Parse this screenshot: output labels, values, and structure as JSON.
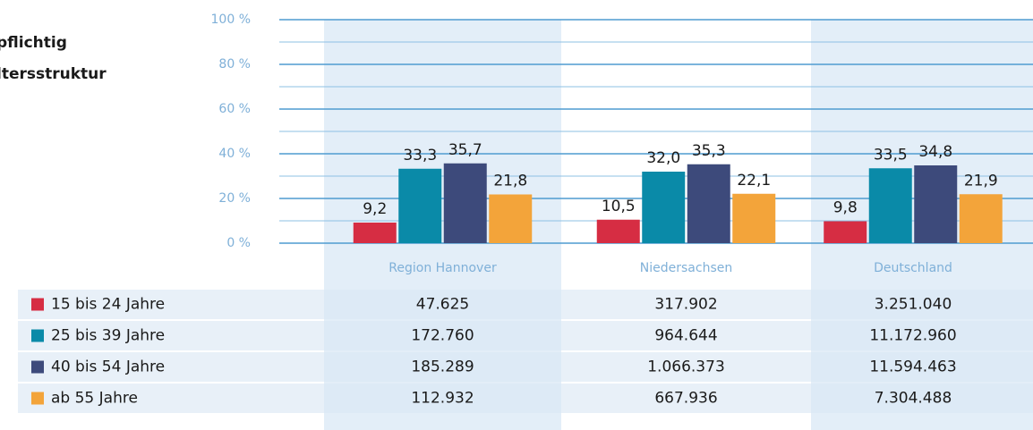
{
  "chart_data": {
    "type": "bar",
    "title": [
      "pflichtig",
      "ltersstruktur"
    ],
    "categories": [
      "Region Hannover",
      "Niedersachsen",
      "Deutschland"
    ],
    "series": [
      {
        "name": "15 bis 24 Jahre",
        "color": "#d62d43",
        "values": [
          9.2,
          10.5,
          9.8
        ],
        "value_labels": [
          "9,2",
          "10,5",
          "9,8"
        ]
      },
      {
        "name": "25 bis 39 Jahre",
        "color": "#0a8aa8",
        "values": [
          33.3,
          32.0,
          33.5
        ],
        "value_labels": [
          "33,3",
          "32,0",
          "33,5"
        ]
      },
      {
        "name": "40 bis 54 Jahre",
        "color": "#3d4a7b",
        "values": [
          35.7,
          35.3,
          34.8
        ],
        "value_labels": [
          "35,7",
          "35,3",
          "34,8"
        ]
      },
      {
        "name": "ab 55 Jahre",
        "color": "#f3a43a",
        "values": [
          21.8,
          22.1,
          21.9
        ],
        "value_labels": [
          "21,8",
          "22,1",
          "21,9"
        ]
      }
    ],
    "ylim": [
      0,
      100
    ],
    "yticks": [
      {
        "value": 0,
        "label": "0 %"
      },
      {
        "value": 20,
        "label": "20 %"
      },
      {
        "value": 40,
        "label": "40 %"
      },
      {
        "value": 60,
        "label": "60 %"
      },
      {
        "value": 80,
        "label": "80 %"
      },
      {
        "value": 100,
        "label": "100 %"
      }
    ],
    "yminor": [
      10,
      30,
      50,
      70,
      90
    ],
    "grid": true
  },
  "table": {
    "rows": [
      [
        "47.625",
        "317.902",
        "3.251.040"
      ],
      [
        "172.760",
        "964.644",
        "11.172.960"
      ],
      [
        "185.289",
        "1.066.373",
        "11.594.463"
      ],
      [
        "112.932",
        "667.936",
        "7.304.488"
      ]
    ]
  }
}
